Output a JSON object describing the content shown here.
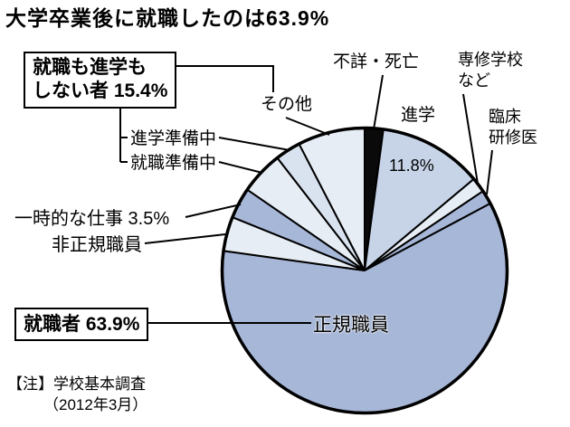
{
  "title": "大学卒業後に就職したのは63.9%",
  "note": {
    "line1": "【注】学校基本調査",
    "line2": "（2012年3月）"
  },
  "callout_boxes": {
    "neither_line1": "就職も進学も",
    "neither_line2": "しない者 15.4%",
    "employed": "就職者 63.9%"
  },
  "labels": {
    "fusho": "不詳・死亡",
    "senshu_line1": "専修学校",
    "senshu_line2": "など",
    "shingaku": "進学",
    "shingaku_pct": "11.8%",
    "rinsho_line1": "臨床",
    "rinsho_line2": "研修医",
    "sonota": "その他",
    "shingaku_junbi": "進学準備中",
    "shushoku_junbi": "就職準備中",
    "ichiji": "一時的な仕事 3.5%",
    "hiseiki": "非正規職員",
    "seiki": "正規職員"
  },
  "chart_data": {
    "type": "pie",
    "title": "大学卒業後に就職したのは63.9%",
    "source_note": "【注】学校基本調査（2012年3月）",
    "start_angle_deg": 0,
    "direction": "clockwise",
    "unit": "%",
    "slices": [
      {
        "id": "unknown-deceased",
        "label": "不詳・死亡",
        "value": 2.1,
        "color": "#0a0a0a"
      },
      {
        "id": "further-education",
        "label": "進学",
        "value": 11.8,
        "color": "#c7d4e8",
        "value_label": "11.8%"
      },
      {
        "id": "vocational-school",
        "label": "専修学校など",
        "value": 1.7,
        "color": "#e7edf5"
      },
      {
        "id": "clinical-resident",
        "label": "臨床研修医",
        "value": 1.6,
        "color": "#a7b7d8"
      },
      {
        "id": "regular-staff",
        "label": "正規職員",
        "value": 60.0,
        "color": "#a7b7d8"
      },
      {
        "id": "non-regular-staff",
        "label": "非正規職員",
        "value": 3.9,
        "color": "#e7edf5"
      },
      {
        "id": "temporary-work",
        "label": "一時的な仕事",
        "value": 3.5,
        "color": "#a7b7d8",
        "value_label": "3.5%"
      },
      {
        "id": "preparing-employment",
        "label": "就職準備中",
        "value": 4.9,
        "color": "#e7edf5"
      },
      {
        "id": "preparing-education",
        "label": "進学準備中",
        "value": 2.9,
        "color": "#d9e3f0"
      },
      {
        "id": "other",
        "label": "その他",
        "value": 7.6,
        "color": "#e7edf5"
      }
    ],
    "aggregates": [
      {
        "label": "就職者",
        "value_label": "63.9%",
        "includes": [
          "regular-staff",
          "non-regular-staff"
        ]
      },
      {
        "label": "就職も進学もしない者",
        "value_label": "15.4%",
        "includes": [
          "preparing-education",
          "preparing-employment",
          "other"
        ]
      }
    ]
  }
}
